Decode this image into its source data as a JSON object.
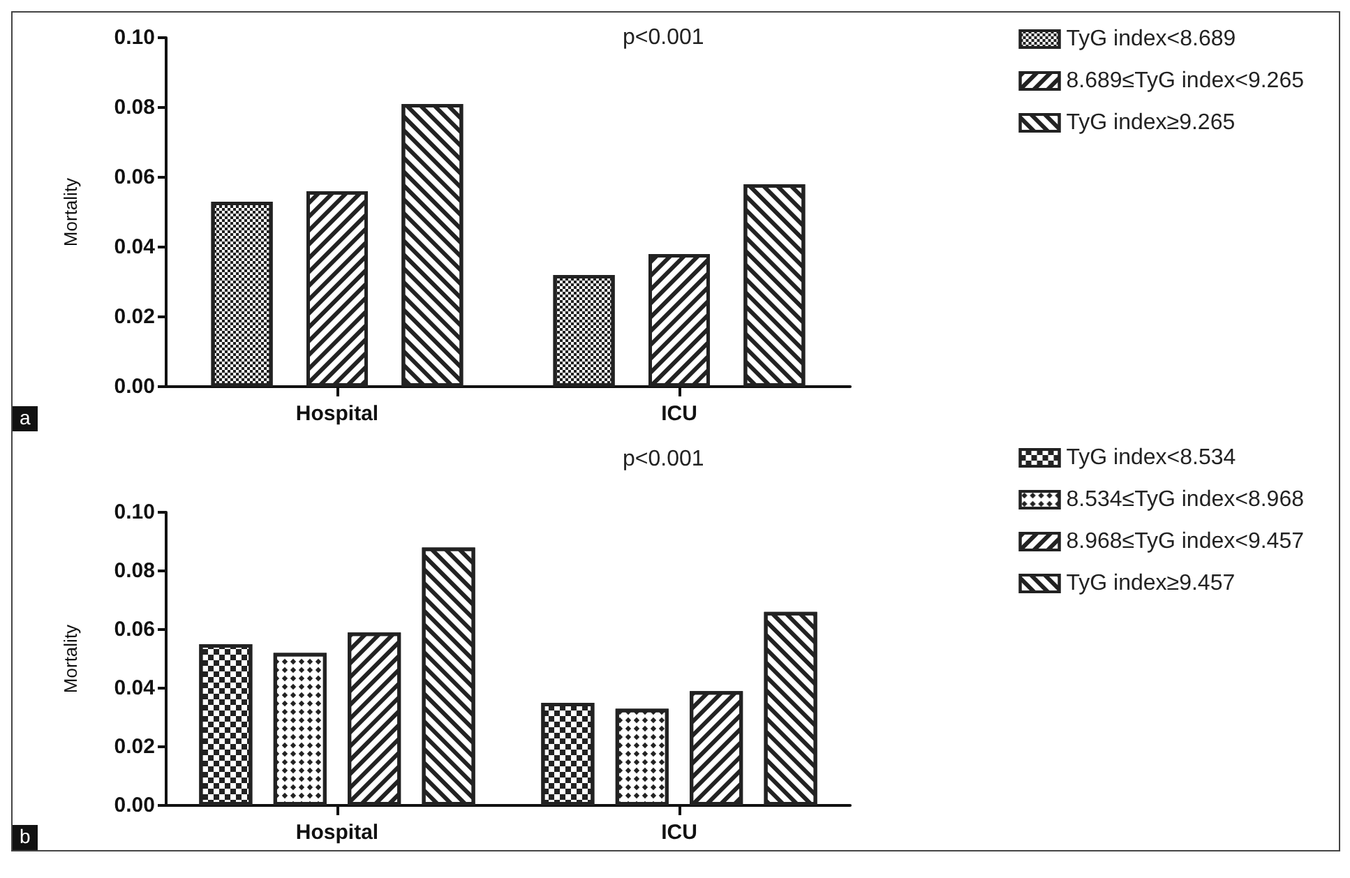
{
  "chart_data": [
    {
      "type": "bar",
      "ylabel": "Mortality",
      "categories": [
        "Hospital",
        "ICU"
      ],
      "series": [
        {
          "name": "TyG index<8.689",
          "color": "#222222",
          "values": [
            0.053,
            0.032
          ]
        },
        {
          "name": "8.689≤TyG index<9.265",
          "color": "#222222",
          "values": [
            0.056,
            0.038
          ]
        },
        {
          "name": "TyG index≥9.265",
          "color": "#222222",
          "values": [
            0.081,
            0.058
          ]
        }
      ],
      "ylim": [
        0,
        0.1
      ],
      "yticks": [
        {
          "value": 0,
          "label": "0.00"
        },
        {
          "value": 0.02,
          "label": "0.02"
        },
        {
          "value": 0.04,
          "label": "0.04"
        },
        {
          "value": 0.06,
          "label": "0.06"
        },
        {
          "value": 0.08,
          "label": "0.08"
        },
        {
          "value": 0.1,
          "label": "0.10"
        }
      ],
      "grid": false,
      "legend": "top right",
      "annotations": [
        "p<0.001",
        "a"
      ]
    },
    {
      "type": "bar",
      "ylabel": "Mortality",
      "categories": [
        "Hospital",
        "ICU"
      ],
      "series": [
        {
          "name": "TyG index<8.534",
          "color": "#222222",
          "values": [
            0.055,
            0.035
          ]
        },
        {
          "name": "8.534≤TyG index<8.968",
          "color": "#222222",
          "values": [
            0.052,
            0.033
          ]
        },
        {
          "name": "8.968≤TyG index<9.457",
          "color": "#222222",
          "values": [
            0.059,
            0.039
          ]
        },
        {
          "name": "TyG index≥9.457",
          "color": "#222222",
          "values": [
            0.088,
            0.066
          ]
        }
      ],
      "ylim": [
        0,
        0.1
      ],
      "yticks": [
        {
          "value": 0,
          "label": "0.00"
        },
        {
          "value": 0.02,
          "label": "0.02"
        },
        {
          "value": 0.04,
          "label": "0.04"
        },
        {
          "value": 0.06,
          "label": "0.06"
        },
        {
          "value": 0.08,
          "label": "0.08"
        },
        {
          "value": 0.1,
          "label": "0.10"
        }
      ],
      "grid": false,
      "legend": "top right",
      "annotations": [
        "p<0.001",
        "b"
      ]
    }
  ]
}
